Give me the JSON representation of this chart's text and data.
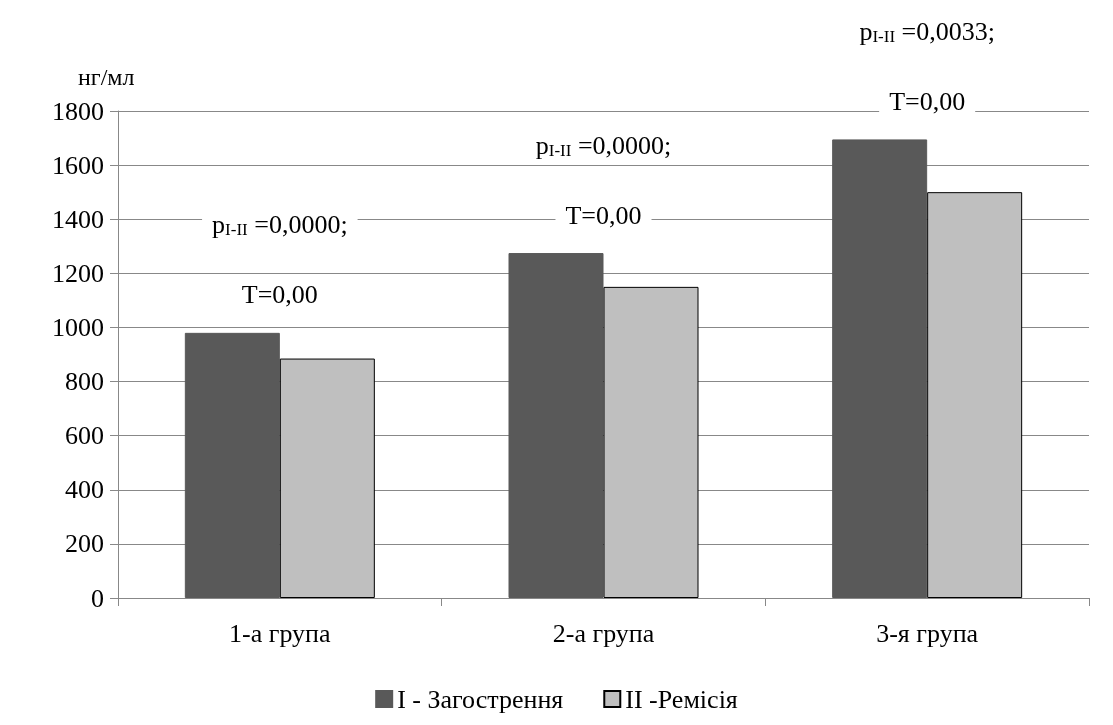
{
  "chart_data": {
    "type": "bar",
    "ylabel": "нг/мл",
    "categories": [
      "1-а група",
      "2-а група",
      "3-я група"
    ],
    "series": [
      {
        "name": "I - Загострення",
        "color": "#595959",
        "values": [
          980,
          1275,
          1695
        ]
      },
      {
        "name": "II -Ремісія",
        "color": "#bfbfbf",
        "values": [
          885,
          1150,
          1500
        ]
      }
    ],
    "ylim": [
      0,
      1800
    ],
    "yticks": [
      0,
      200,
      400,
      600,
      800,
      1000,
      1200,
      1400,
      1600,
      1800
    ],
    "grid": "y",
    "legend": "bottom",
    "annotations": [
      "p$_{I-II}$ =0,0000;",
      "T=0,00",
      "p$_{I-II}$ =0,0000;",
      "T=0,00",
      "p$_{I-II}$ =0,0033;",
      "T=0,00"
    ]
  }
}
